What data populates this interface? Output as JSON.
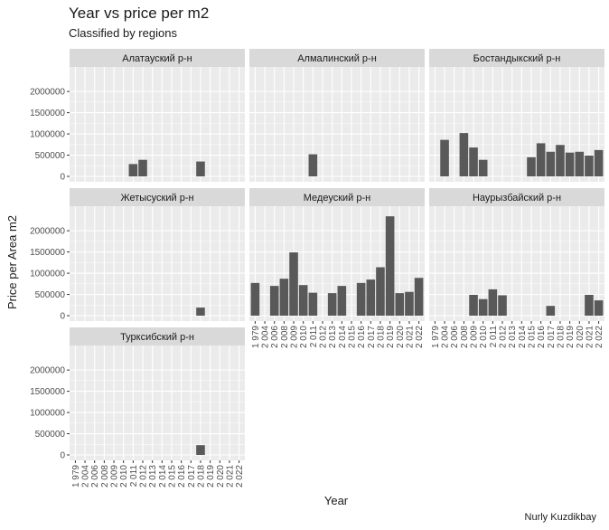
{
  "chart_data": {
    "type": "bar",
    "title": "Year vs price per m2",
    "subtitle": "Classified by regions",
    "caption": "Nurly Kuzdikbay",
    "xlabel": "Year",
    "ylabel": "Price per Area m2",
    "ylim": [
      0,
      2450000
    ],
    "yticks": [
      0,
      500000,
      1000000,
      1500000,
      2000000
    ],
    "ytick_labels": [
      "0",
      "500000",
      "1000000",
      "1500000",
      "2000000"
    ],
    "categories": [
      "1 979",
      "2 004",
      "2 006",
      "2 008",
      "2 009",
      "2 010",
      "2 011",
      "2 012",
      "2 013",
      "2 014",
      "2 015",
      "2 016",
      "2 017",
      "2 018",
      "2 019",
      "2 020",
      "2 021",
      "2 022"
    ],
    "categories_alt": [
      "1 979",
      "2 004",
      "2 006",
      "2 008",
      "2 009",
      "2 010",
      "2 011",
      "2 012",
      "2 013",
      "2 014",
      "2 015",
      "2 016",
      "2 017",
      "2 018",
      "2 019",
      "2 020",
      "2 021",
      "2 022"
    ],
    "panels": [
      {
        "name": "Алатауский р-н",
        "values": [
          null,
          null,
          null,
          null,
          null,
          null,
          290000,
          390000,
          null,
          null,
          null,
          null,
          null,
          350000,
          null,
          null,
          null,
          null
        ]
      },
      {
        "name": "Алмалинский р-н",
        "values": [
          null,
          null,
          null,
          null,
          null,
          null,
          520000,
          null,
          null,
          null,
          null,
          null,
          null,
          null,
          null,
          null,
          null,
          null
        ]
      },
      {
        "name": "Бостандыкский р-н",
        "values": [
          null,
          860000,
          null,
          1020000,
          680000,
          390000,
          null,
          null,
          null,
          null,
          450000,
          780000,
          580000,
          740000,
          560000,
          580000,
          490000,
          620000
        ]
      },
      {
        "name": "Жетысуский р-н",
        "values": [
          null,
          null,
          null,
          null,
          null,
          null,
          null,
          null,
          null,
          null,
          null,
          null,
          null,
          190000,
          null,
          null,
          null,
          null
        ]
      },
      {
        "name": "Медеуский р-н",
        "values": [
          770000,
          null,
          700000,
          870000,
          1490000,
          720000,
          540000,
          null,
          530000,
          700000,
          null,
          770000,
          850000,
          1140000,
          2340000,
          530000,
          560000,
          890000
        ]
      },
      {
        "name": "Наурызбайский р-н",
        "values": [
          null,
          null,
          null,
          null,
          490000,
          390000,
          620000,
          480000,
          null,
          null,
          null,
          null,
          230000,
          null,
          null,
          null,
          490000,
          360000
        ]
      },
      {
        "name": "Турксибский р-н",
        "values": [
          null,
          null,
          null,
          null,
          null,
          null,
          null,
          null,
          null,
          null,
          null,
          null,
          null,
          230000,
          null,
          null,
          null,
          null
        ]
      }
    ],
    "grid": true,
    "legend": "none"
  },
  "colors": {
    "panel_bg": "#ebebeb",
    "strip_bg": "#d9d9d9",
    "bar": "#595959",
    "grid": "#ffffff",
    "text": "#1a1a1a",
    "tick_text": "#4d4d4d"
  }
}
